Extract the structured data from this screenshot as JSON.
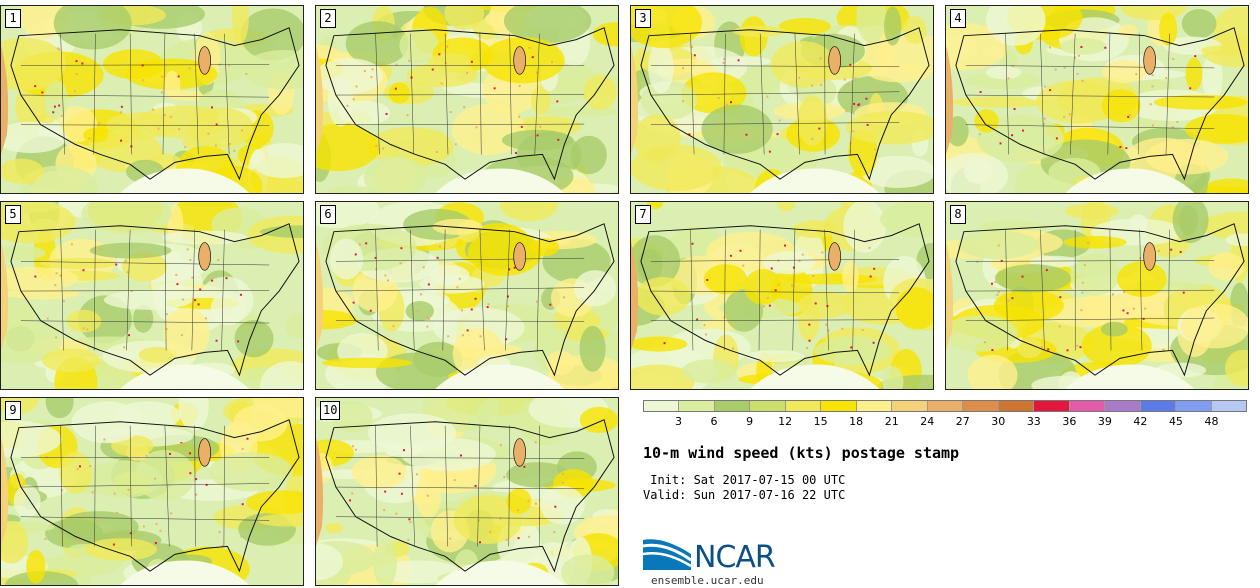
{
  "panels": [
    {
      "label": "1"
    },
    {
      "label": "2"
    },
    {
      "label": "3"
    },
    {
      "label": "4"
    },
    {
      "label": "5"
    },
    {
      "label": "6"
    },
    {
      "label": "7"
    },
    {
      "label": "8"
    },
    {
      "label": "9"
    },
    {
      "label": "10"
    }
  ],
  "colorbar": {
    "labels": [
      "3",
      "6",
      "9",
      "12",
      "15",
      "18",
      "21",
      "24",
      "27",
      "30",
      "33",
      "36",
      "39",
      "42",
      "45",
      "48"
    ],
    "colors": [
      "#eef7d4",
      "#d9ee9e",
      "#a8cc6a",
      "#c9df6a",
      "#f0ea5a",
      "#f7e400",
      "#fff08c",
      "#f3d27a",
      "#eab06a",
      "#dd8e4a",
      "#cf7532",
      "#e3173e",
      "#e45ca8",
      "#a77bc8",
      "#5b7be8",
      "#7f9ef2",
      "#b7c8f4"
    ]
  },
  "title": "10-m wind speed (kts) postage stamp",
  "init_line": " Init: Sat 2017-07-15 00 UTC",
  "valid_line": "Valid: Sun 2017-07-16 22 UTC",
  "logo": {
    "text": "NCAR",
    "url": "ensemble.ucar.edu"
  }
}
